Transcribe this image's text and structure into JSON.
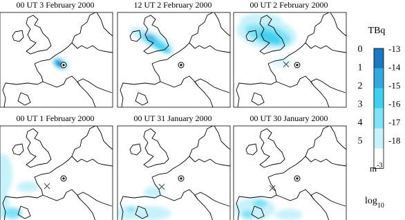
{
  "panels": [
    {
      "title": "00 UT  3 February 2000"
    },
    {
      "title": "12 UT  2 February 2000"
    },
    {
      "title": "00 UT  2 February 2000"
    },
    {
      "title": "00 UT  1 February 2000"
    },
    {
      "title": "00 UT  31 January 2000"
    },
    {
      "title": "00 UT  30 January 2000"
    }
  ],
  "legend": {
    "unit": "TBq",
    "left_labels": [
      0,
      1,
      2,
      3,
      4,
      5
    ],
    "right_labels": [
      -13,
      -14,
      -15,
      -16,
      -17,
      -18
    ],
    "density_unit": "m",
    "density_exponent": "-3",
    "scale": "log",
    "scale_base": "10"
  }
}
